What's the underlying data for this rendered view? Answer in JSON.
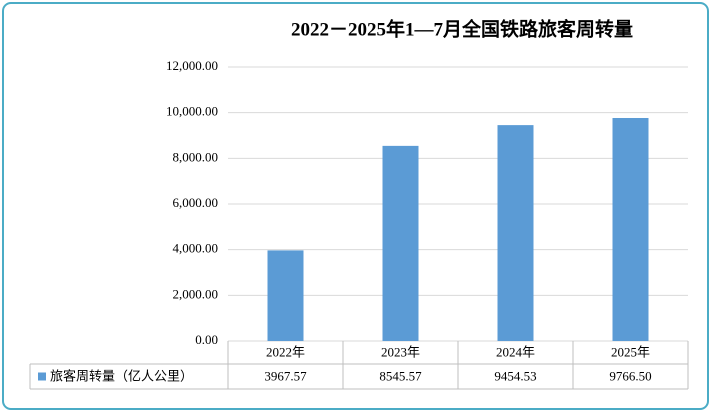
{
  "chart_data": {
    "type": "bar",
    "title": "2022－2025年1—7月全国铁路旅客周转量",
    "categories": [
      "2022年",
      "2023年",
      "2024年",
      "2025年"
    ],
    "series": [
      {
        "name": "旅客周转量（亿人公里）",
        "color": "#5b9bd5",
        "values": [
          3967.57,
          8545.57,
          9454.53,
          9766.5
        ],
        "value_labels": [
          "3967.57",
          "8545.57",
          "9454.53",
          "9766.50"
        ]
      }
    ],
    "ylim": [
      0,
      12000
    ],
    "yticks": [
      {
        "value": 0,
        "label": "0.00"
      },
      {
        "value": 2000,
        "label": "2,000.00"
      },
      {
        "value": 4000,
        "label": "4,000.00"
      },
      {
        "value": 6000,
        "label": "6,000.00"
      },
      {
        "value": 8000,
        "label": "8,000.00"
      },
      {
        "value": 10000,
        "label": "10,000.00"
      },
      {
        "value": 12000,
        "label": "12,000.00"
      }
    ],
    "grid": true
  }
}
